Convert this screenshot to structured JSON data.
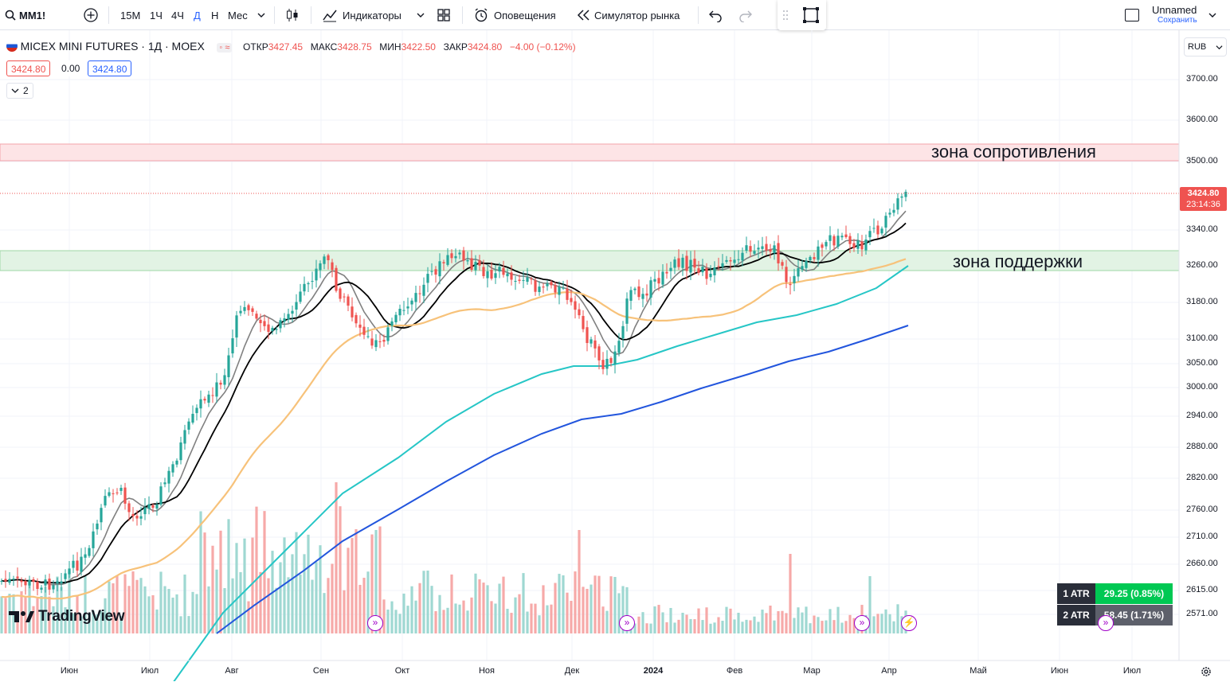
{
  "toolbar": {
    "symbol": "MM1!",
    "intervals": [
      "15М",
      "1Ч",
      "4Ч",
      "Д",
      "Н",
      "Мес"
    ],
    "indicators": "Индикаторы",
    "alerts": "Оповещения",
    "replay": "Симулятор рынка",
    "layout_name": "Unnamed",
    "save": "Сохранить"
  },
  "legend": {
    "title": "MICEX MINI FUTURES · 1Д · MOEX",
    "open_label": "ОТКР",
    "open": "3427.45",
    "high_label": "МАКС",
    "high": "3428.75",
    "low_label": "МИН",
    "low": "3422.50",
    "close_label": "ЗАКР",
    "close": "3424.80",
    "change": "−4.00 (−0.12%)",
    "bid": "3424.80",
    "spread": "0.00",
    "ask": "3424.80",
    "indicators_count": "2"
  },
  "currency": "RUB",
  "price_axis": [
    "3700.00",
    "3600.00",
    "3500.00",
    "3340.00",
    "3260.00",
    "3180.00",
    "3100.00",
    "3050.00",
    "3000.00",
    "2940.00",
    "2880.00",
    "2820.00",
    "2760.00",
    "2710.00",
    "2660.00",
    "2615.00",
    "2571.00"
  ],
  "last_price": {
    "price": "3424.80",
    "timer": "23:14:36"
  },
  "time_axis": [
    "Июн",
    "Июл",
    "Авг",
    "Сен",
    "Окт",
    "Ноя",
    "Дек",
    "2024",
    "Фев",
    "Мар",
    "Апр",
    "Май",
    "Июн",
    "Июл"
  ],
  "zones": {
    "resistance": "зона сопротивления",
    "support": "зона поддержки"
  },
  "atr": [
    {
      "label": "1 ATR",
      "value": "29.25 (0.85%)"
    },
    {
      "label": "2 ATR",
      "value": "58.45 (1.71%)"
    }
  ],
  "brand": "TradingView",
  "colors": {
    "up": "#26a69a",
    "down": "#ef5350",
    "resistance_zone": "#fde4e6",
    "support_zone": "#e2f3e4",
    "ma_black": "#000000",
    "ma_gray": "#808080",
    "ma_orange": "#f7c27a",
    "ma_cyan": "#26c6c6",
    "ma_blue": "#2255dd"
  },
  "chart_data": {
    "type": "line",
    "description_series": "daily close approximation",
    "x": [
      "Июн",
      "Июл",
      "Авг",
      "Сен",
      "Окт",
      "Ноя",
      "Дек",
      "2024",
      "Фев",
      "Мар",
      "Апр"
    ],
    "series": [
      {
        "name": "",
        "values": [
          2610,
          2780,
          3080,
          3290,
          3100,
          3270,
          3020,
          3250,
          3280,
          3240,
          3425
        ]
      }
    ]
  }
}
